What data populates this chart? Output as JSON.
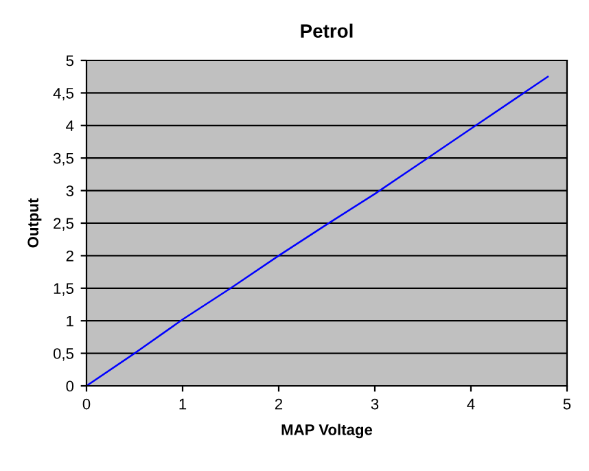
{
  "chart_data": {
    "type": "line",
    "title": "Petrol",
    "xlabel": "MAP Voltage",
    "ylabel": "Output",
    "x": [
      0,
      0.5,
      1,
      1.5,
      2,
      2.5,
      3,
      3.5,
      4,
      4.5,
      4.8
    ],
    "series": [
      {
        "color": "#0000ff",
        "values": [
          0,
          0.5,
          1.02,
          1.5,
          2.0,
          2.48,
          2.95,
          3.45,
          3.95,
          4.45,
          4.75
        ]
      }
    ],
    "xlim": [
      0,
      5
    ],
    "xticks": [
      0,
      1,
      2,
      3,
      4,
      5
    ],
    "ylim": [
      0,
      5
    ],
    "yticks": [
      0,
      {
        "value": 0.5,
        "label": "0,5"
      },
      1,
      {
        "value": 1.5,
        "label": "1,5"
      },
      2,
      {
        "value": 2.5,
        "label": "2,5"
      },
      3,
      {
        "value": 3.5,
        "label": "3,5"
      },
      4,
      {
        "value": 4.5,
        "label": "4,5"
      },
      5
    ],
    "grid": "y",
    "legend": false,
    "marker": "none",
    "line_style": "solid"
  }
}
